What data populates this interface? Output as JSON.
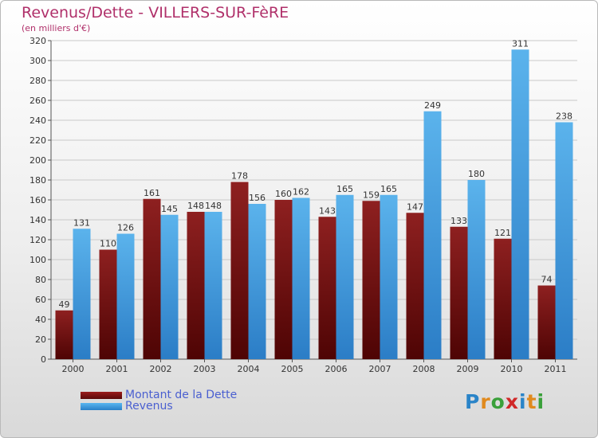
{
  "page": {
    "title": "Revenus/Dette - VILLERS-SUR-FèRE",
    "subtitle": "(en milliers d'€)"
  },
  "legend": {
    "items": [
      {
        "label": "Montant de la Dette",
        "color": "#7a1010"
      },
      {
        "label": "Revenus",
        "color": "#3d9ee0"
      }
    ]
  },
  "logo": {
    "text": "Proxiti",
    "letters": [
      "P",
      "r",
      "o",
      "x",
      "i",
      "t",
      "i"
    ],
    "colors": [
      "#2a84c8",
      "#e08a1e",
      "#3aa03a",
      "#d02828",
      "#2a84c8",
      "#e08a1e",
      "#3aa03a"
    ]
  },
  "chart_data": {
    "type": "bar",
    "title": "Revenus/Dette - VILLERS-SUR-FèRE",
    "ylabel": "(en milliers d'€)",
    "xlabel": "",
    "categories": [
      "2000",
      "2001",
      "2002",
      "2003",
      "2004",
      "2005",
      "2006",
      "2007",
      "2008",
      "2009",
      "2010",
      "2011"
    ],
    "series": [
      {
        "name": "Montant de la Dette",
        "color": "#7a1010",
        "values": [
          49,
          110,
          161,
          148,
          178,
          160,
          143,
          159,
          147,
          133,
          121,
          74
        ]
      },
      {
        "name": "Revenus",
        "color": "#3d9ee0",
        "values": [
          131,
          126,
          145,
          148,
          156,
          162,
          165,
          165,
          249,
          180,
          311,
          238
        ]
      }
    ],
    "ylim": [
      0,
      320
    ],
    "yticks": [
      0,
      20,
      40,
      60,
      80,
      100,
      120,
      140,
      160,
      180,
      200,
      220,
      240,
      260,
      280,
      300,
      320
    ],
    "grid": true,
    "legend_position": "bottom-left"
  }
}
